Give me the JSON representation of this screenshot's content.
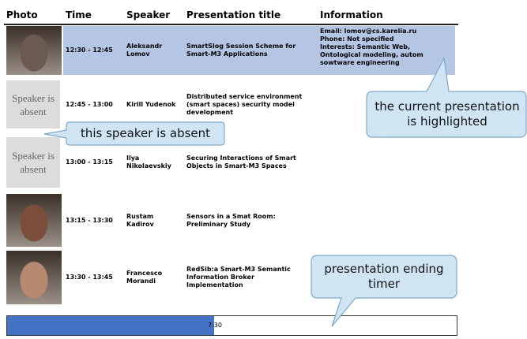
{
  "table": {
    "headers": [
      "Photo",
      "Time",
      "Speaker",
      "Presentation title",
      "Information"
    ],
    "rows": [
      {
        "time": "12:30 - 12:45",
        "speaker": "Aleksandr Lomov",
        "title": "SmartSlog Session Scheme for Smart-M3 Applications",
        "information": [
          "Email: lomov@cs.karelia.ru",
          "Phone: Not specified",
          "Interests: Semantic Web,",
          "Ontological modeling, autom",
          "sowtware engineering"
        ]
      },
      {
        "photo_text": "Speaker is absent",
        "time": "12:45 - 13:00",
        "speaker": "Kirill Yudenok",
        "title": "Distributed service environment (smart spaces) security model development"
      },
      {
        "photo_text": "Speaker is absent",
        "time": "13:00 - 13:15",
        "speaker": "Ilya Nikolaevskiy",
        "title": "Securing Interactions of Smart Objects in Smart-M3 Spaces"
      },
      {
        "time": "13:15 - 13:30",
        "speaker": "Rustam Kadirov",
        "title": "Sensors in a Smat Room: Preliminary Study"
      },
      {
        "time": "13:30 - 13:45",
        "speaker": "Francesco Morandi",
        "title": "RedSib:a Smart-M3 Semantic Information Broker Implementation"
      }
    ]
  },
  "timer": {
    "label": "7:30"
  },
  "annotations": [
    "this speaker is absent",
    "the current presentation is highlighted",
    "presentation ending timer"
  ]
}
